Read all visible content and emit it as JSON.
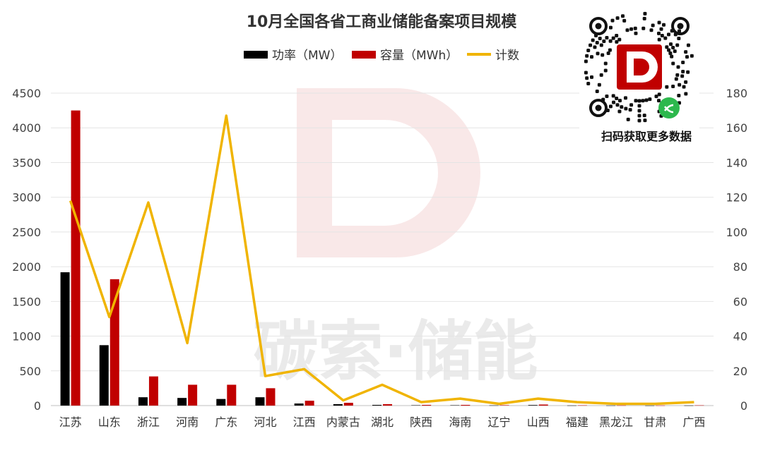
{
  "chart_data": {
    "type": "bar",
    "title": "10月全国各省工商业储能备案项目规模",
    "categories": [
      "江苏",
      "山东",
      "浙江",
      "河南",
      "广东",
      "河北",
      "江西",
      "内蒙古",
      "湖北",
      "陕西",
      "海南",
      "辽宁",
      "山西",
      "福建",
      "黑龙江",
      "甘肃",
      "广西"
    ],
    "series": [
      {
        "name": "功率（MW）",
        "kind": "bar",
        "axis": "left",
        "color": "#000000",
        "values": [
          1920,
          870,
          120,
          110,
          95,
          120,
          30,
          20,
          10,
          5,
          5,
          3,
          8,
          2,
          2,
          1,
          2
        ]
      },
      {
        "name": "容量（MWh）",
        "kind": "bar",
        "axis": "left",
        "color": "#c00000",
        "values": [
          4250,
          1820,
          420,
          300,
          300,
          250,
          70,
          40,
          20,
          10,
          10,
          6,
          15,
          4,
          3,
          2,
          4
        ]
      },
      {
        "name": "计数",
        "kind": "line",
        "axis": "right",
        "color": "#f0b400",
        "values": [
          118,
          51,
          117,
          36,
          167,
          17,
          21,
          3,
          12,
          2,
          4,
          1,
          4,
          2,
          1,
          1,
          2
        ]
      }
    ],
    "ylim_left": [
      0,
      4500
    ],
    "yticks_left": [
      "0",
      "500",
      "1000",
      "1500",
      "2000",
      "2500",
      "3000",
      "3500",
      "4000",
      "4500"
    ],
    "ylim_right": [
      0,
      180
    ],
    "yticks_right": [
      "0",
      "20",
      "40",
      "60",
      "80",
      "100",
      "120",
      "140",
      "160",
      "180"
    ],
    "grid": true,
    "legend_position": "top-center"
  },
  "watermark": {
    "text": "碳索·储能",
    "logo_letter": "D"
  },
  "qr": {
    "caption": "扫码获取更多数据"
  }
}
